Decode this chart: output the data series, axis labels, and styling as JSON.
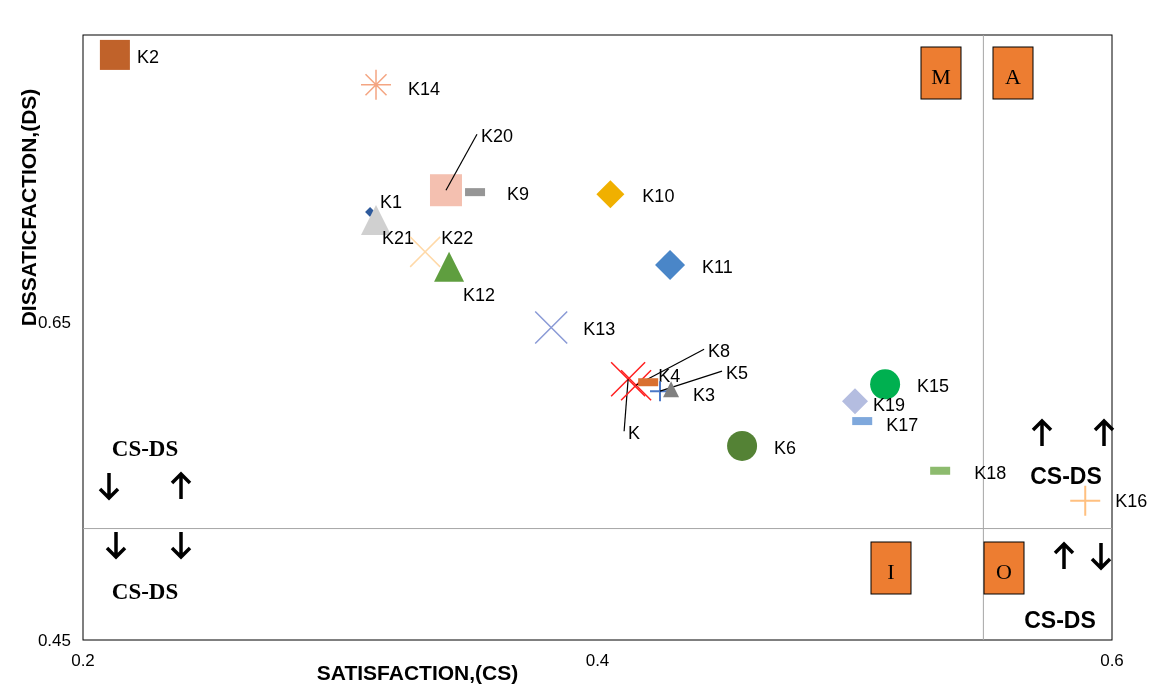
{
  "chart_data": {
    "type": "scatter",
    "xlabel": "SATISFACTION,(CS)",
    "ylabel": "DISSATICFACTION,(DS)",
    "xlim": [
      0.2,
      0.6
    ],
    "xticks": [
      0.2,
      0.4,
      0.6
    ],
    "ylim": [
      0.45,
      0.83
    ],
    "yticks": [
      0.45,
      0.65
    ],
    "grid": false,
    "ref_lines": [
      {
        "axis": "x",
        "value": 0.55,
        "color": "#a6a6a6"
      },
      {
        "axis": "y",
        "value": 0.52,
        "color": "#a6a6a6"
      }
    ],
    "annotations": [
      "M",
      "A",
      "I",
      "O",
      "CS-DS",
      "CS-DS",
      "CS-DS",
      "CS-DS"
    ],
    "series": [
      {
        "name": "K2",
        "color": "#c0622a",
        "marker": "square",
        "x": [
          0.2124
        ],
        "values": [
          0.8175
        ]
      },
      {
        "name": "K14",
        "color": "#f4a582",
        "marker": "cross",
        "x": [
          0.3139
        ],
        "values": [
          0.7988
        ]
      },
      {
        "name": "K20",
        "color": "#f4c0b0",
        "marker": "square",
        "x": [
          0.3411
        ],
        "values": [
          0.7325
        ]
      },
      {
        "name": "K9",
        "color": "#969696",
        "marker": "square",
        "x": [
          0.3524
        ],
        "values": [
          0.7313
        ]
      },
      {
        "name": "K10",
        "color": "#f0b000",
        "marker": "diamond",
        "x": [
          0.405
        ],
        "values": [
          0.73
        ]
      },
      {
        "name": "K1",
        "color": "#2e5a9c",
        "marker": "diamond",
        "x": [
          0.3116
        ],
        "values": [
          0.7188
        ]
      },
      {
        "name": "K21",
        "color": "#d0d0d0",
        "marker": "triangle",
        "x": [
          0.3139
        ],
        "values": [
          0.7138
        ]
      },
      {
        "name": "K22",
        "color": "#ffd9a8",
        "marker": "cross",
        "x": [
          0.333
        ],
        "values": [
          0.6938
        ]
      },
      {
        "name": "K12",
        "color": "#5f9e3f",
        "marker": "triangle",
        "x": [
          0.3423
        ],
        "values": [
          0.6844
        ]
      },
      {
        "name": "K11",
        "color": "#4a86c8",
        "marker": "diamond",
        "x": [
          0.4282
        ],
        "values": [
          0.6856
        ]
      },
      {
        "name": "K13",
        "color": "#8a9ad6",
        "marker": "cross",
        "x": [
          0.382
        ],
        "values": [
          0.6463
        ]
      },
      {
        "name": "K",
        "color": "#ff2020",
        "marker": "cross",
        "x": [
          0.4119
        ],
        "values": [
          0.6138
        ]
      },
      {
        "name": "K8",
        "color": "#ff2020",
        "marker": "cross",
        "x": [
          0.415
        ],
        "values": [
          0.61
        ]
      },
      {
        "name": "K4",
        "color": "#d97030",
        "marker": "square",
        "x": [
          0.4197
        ],
        "values": [
          0.6119
        ]
      },
      {
        "name": "K5",
        "color": "#4a78c8",
        "marker": "cross",
        "x": [
          0.4243
        ],
        "values": [
          0.6063
        ]
      },
      {
        "name": "K3",
        "color": "#808080",
        "marker": "triangle",
        "x": [
          0.4286
        ],
        "values": [
          0.6075
        ]
      },
      {
        "name": "K15",
        "color": "#00b050",
        "marker": "circle",
        "x": [
          0.5118
        ],
        "values": [
          0.6106
        ]
      },
      {
        "name": "K19",
        "color": "#b4bde0",
        "marker": "diamond",
        "x": [
          0.5001
        ],
        "values": [
          0.6
        ]
      },
      {
        "name": "K17",
        "color": "#7fa8dc",
        "marker": "square",
        "x": [
          0.5029
        ],
        "values": [
          0.5875
        ]
      },
      {
        "name": "K6",
        "color": "#548235",
        "marker": "circle",
        "x": [
          0.4562
        ],
        "values": [
          0.5719
        ]
      },
      {
        "name": "K18",
        "color": "#8dbb6e",
        "marker": "square",
        "x": [
          0.5332
        ],
        "values": [
          0.5563
        ]
      },
      {
        "name": "K16",
        "color": "#ffc080",
        "marker": "cross",
        "x": [
          0.5896
        ],
        "values": [
          0.5375
        ]
      }
    ]
  }
}
